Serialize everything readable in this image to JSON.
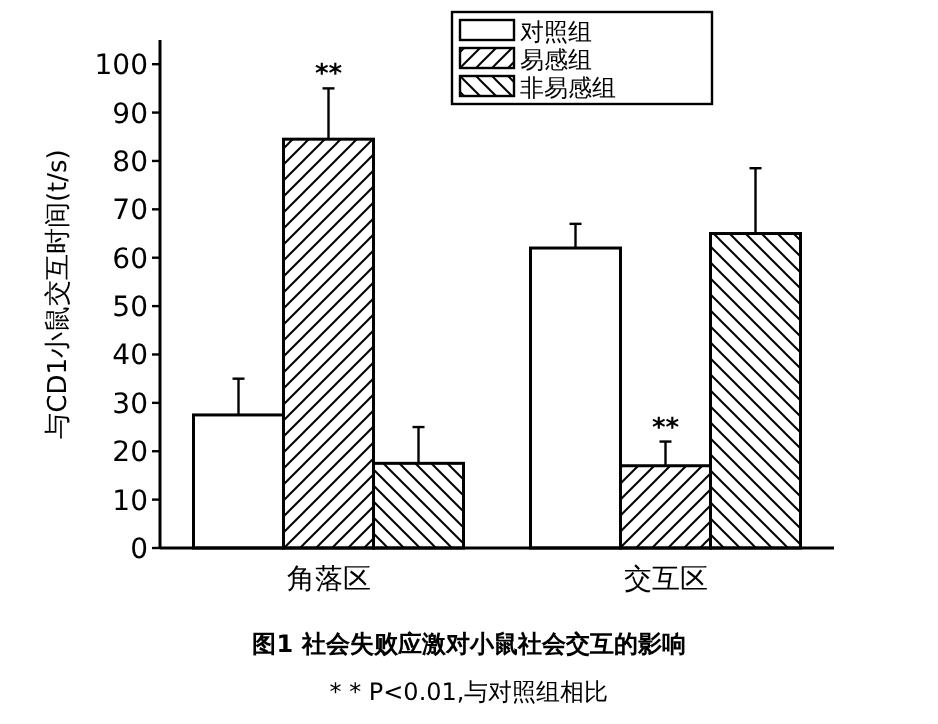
{
  "chart_data": {
    "type": "bar",
    "title": "图1  社会失败应激对小鼠社会交互的影响",
    "ylabel": "与CD1小鼠交互时间(t/s)",
    "categories": [
      "角落区",
      "交互区"
    ],
    "series": [
      {
        "name": "对照组",
        "color": "#ffffff",
        "values": [
          27.5,
          62
        ],
        "errors": [
          [
            27.5,
            35
          ],
          [
            62,
            67
          ]
        ]
      },
      {
        "name": "易感组",
        "color": "#000000",
        "values": [
          84.5,
          17
        ],
        "errors": [
          [
            84.5,
            95
          ],
          [
            17,
            22
          ]
        ]
      },
      {
        "name": "非易感组",
        "color": "#000000",
        "values": [
          17.5,
          65
        ],
        "errors": [
          [
            17.5,
            25
          ],
          [
            65,
            78.5
          ]
        ]
      }
    ],
    "ylim": [
      0,
      105
    ],
    "yticks": [
      0,
      10,
      20,
      30,
      40,
      50,
      60,
      70,
      80,
      90,
      100
    ],
    "legend": "top right",
    "annotations": [
      {
        "text": "**",
        "x": "角落区",
        "y": 95
      },
      {
        "text": "**",
        "x": "交互区",
        "y": 22
      },
      "* * P<0.01,与对照组相比"
    ]
  }
}
